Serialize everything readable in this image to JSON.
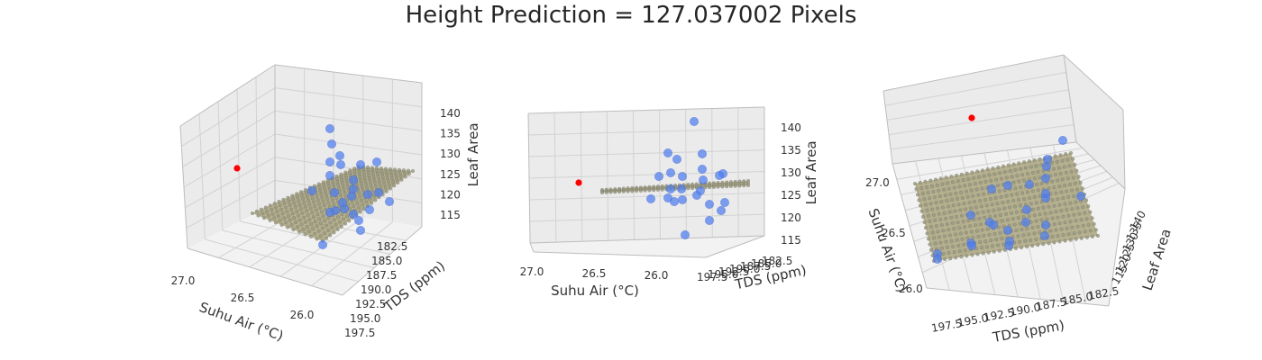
{
  "title": "Height Prediction = 127.037002 Pixels",
  "chart_data": [
    {
      "type": "scatter",
      "view": "perspective",
      "xlabel": "Suhu Air (°C)",
      "ylabel": "TDS (ppm)",
      "zlabel": "Leaf Area",
      "x_ticks": [
        "27.0",
        "26.5",
        "26.0"
      ],
      "y_ticks": [
        "182.5",
        "185.0",
        "187.5",
        "190.0",
        "192.5",
        "195.0",
        "197.5"
      ],
      "z_ticks": [
        "115",
        "120",
        "125",
        "130",
        "135",
        "140"
      ]
    },
    {
      "type": "scatter",
      "view": "side",
      "xlabel": "Suhu Air (°C)",
      "ylabel": "TDS (ppm)",
      "zlabel": "Leaf Area",
      "x_ticks": [
        "27.0",
        "26.5",
        "26.0"
      ],
      "y_ticks": [
        "182.5",
        "185.0",
        "187.5",
        "190.0",
        "192.5",
        "195.0",
        "197.5"
      ],
      "z_ticks": [
        "115",
        "120",
        "125",
        "130",
        "135",
        "140"
      ]
    },
    {
      "type": "scatter",
      "view": "top",
      "xlabel": "Suhu Air (°C)",
      "ylabel": "TDS (ppm)",
      "zlabel": "Leaf Area",
      "x_ticks": [
        "27.0",
        "26.5",
        "26.0"
      ],
      "y_ticks": [
        "182.5",
        "185.0",
        "187.5",
        "190.0",
        "192.5",
        "195.0",
        "197.5"
      ],
      "z_ticks": [
        "115",
        "120",
        "125",
        "130",
        "135",
        "140"
      ]
    }
  ],
  "colors": {
    "points": "#4f7ff0",
    "prediction": "#ff0000",
    "surface": "#a09a6e"
  }
}
